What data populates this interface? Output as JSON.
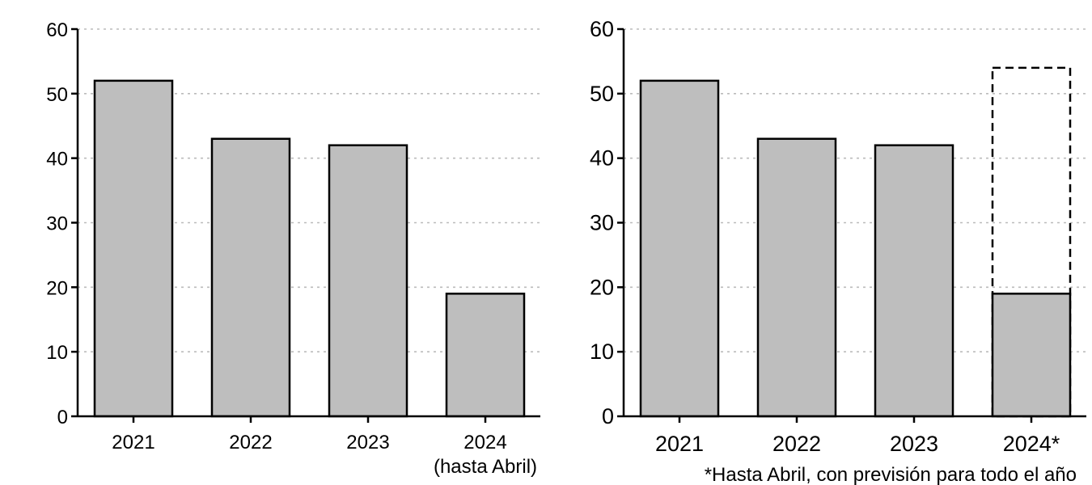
{
  "chart_data": [
    {
      "type": "bar",
      "categories": [
        "2021",
        "2022",
        "2023",
        "2024"
      ],
      "category_sublabels": [
        "",
        "",
        "",
        "(hasta Abril)"
      ],
      "values": [
        52,
        43,
        42,
        19
      ],
      "title": "",
      "xlabel": "",
      "ylabel": "",
      "ylim": [
        0,
        60
      ],
      "yticks": [
        "0",
        "10",
        "20",
        "30",
        "40",
        "50",
        "60"
      ],
      "grid": "horizontal dotted",
      "colors": {
        "bar_fill": "#bebebe",
        "bar_stroke": "#000000",
        "grid": "#bbbbbb"
      }
    },
    {
      "type": "bar",
      "categories": [
        "2021",
        "2022",
        "2023",
        "2024*"
      ],
      "values": [
        52,
        43,
        42,
        19
      ],
      "forecast": {
        "category": "2024*",
        "value": 54,
        "style": "dashed outline"
      },
      "title": "",
      "xlabel": "",
      "ylabel": "",
      "ylim": [
        0,
        60
      ],
      "yticks": [
        "0",
        "10",
        "20",
        "30",
        "40",
        "50",
        "60"
      ],
      "grid": "horizontal dotted",
      "footnote": "*Hasta Abril, con previsión para todo el año",
      "colors": {
        "bar_fill": "#bebebe",
        "bar_stroke": "#000000",
        "grid": "#bbbbbb"
      }
    }
  ]
}
